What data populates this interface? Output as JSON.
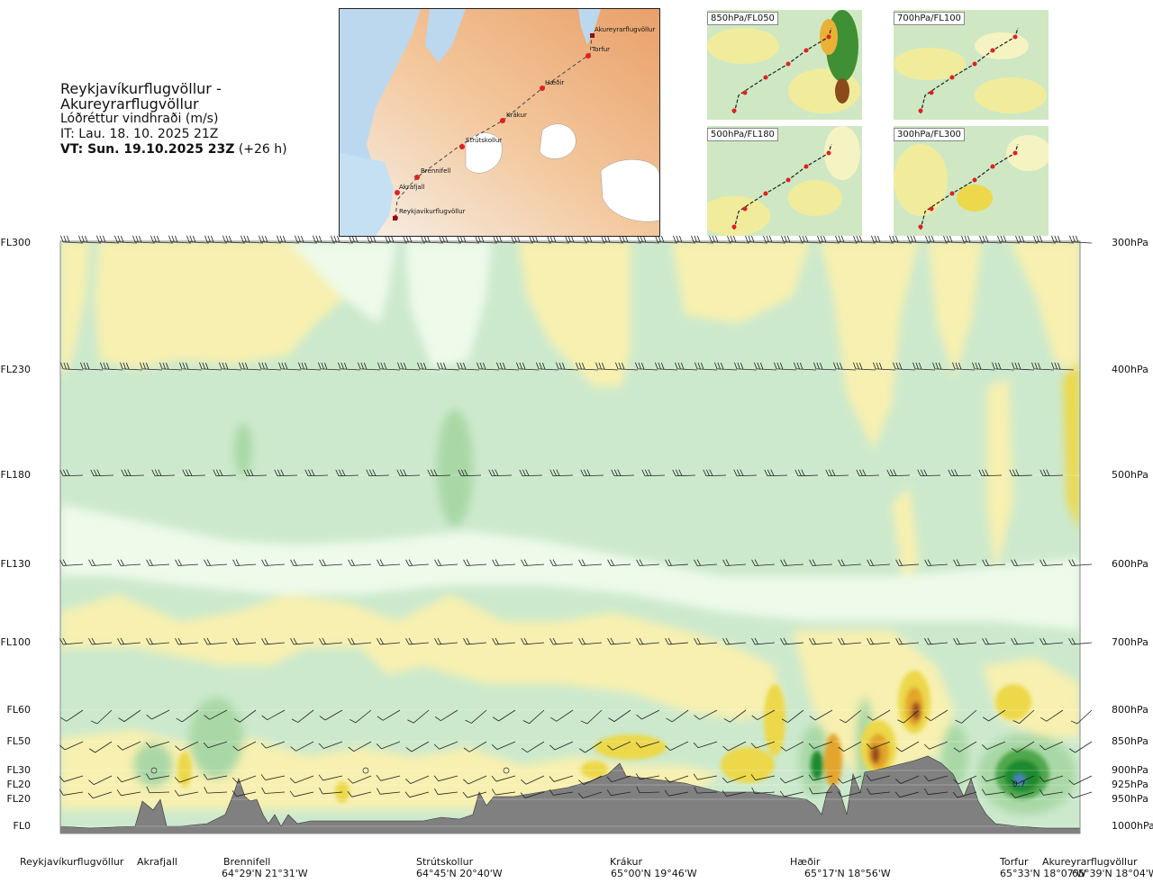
{
  "header": {
    "route": "Reykjavíkurflugvöllur - Akureyrarflugvöllur",
    "variable": "Lóðréttur vindhraði (m/s)",
    "issue_time": "IT: Lau. 18. 10. 2025 21Z",
    "valid_time_bold": "VT: Sun. 19.10.2025 23Z",
    "valid_time_offset": "(+26 h)"
  },
  "map": {
    "waypoints": [
      "Akureyrarflugvöllur",
      "Torfur",
      "Hæðir",
      "Krákur",
      "Strútskollur",
      "Brennifell",
      "Akrafjall",
      "Reykjavíkurflugvöllur"
    ]
  },
  "thumbnails": [
    {
      "label": "850hPa/FL050"
    },
    {
      "label": "700hPa/FL100"
    },
    {
      "label": "500hPa/FL180"
    },
    {
      "label": "300hPa/FL300"
    }
  ],
  "chart_data": {
    "type": "heatmap",
    "title": "Reykjavíkurflugvöllur - Akureyrarflugvöllur",
    "variable": "Lóðréttur vindhraði (m/s)",
    "levels": [
      {
        "fl": "FL300",
        "hpa": "300hPa",
        "p": 300
      },
      {
        "fl": "FL230",
        "hpa": "400hPa",
        "p": 400
      },
      {
        "fl": "FL180",
        "hpa": "500hPa",
        "p": 500
      },
      {
        "fl": "FL130",
        "hpa": "600hPa",
        "p": 600
      },
      {
        "fl": "FL100",
        "hpa": "700hPa",
        "p": 700
      },
      {
        "fl": "FL60",
        "hpa": "800hPa",
        "p": 800
      },
      {
        "fl": "FL50",
        "hpa": "850hPa",
        "p": 850
      },
      {
        "fl": "FL30",
        "hpa": "900hPa",
        "p": 900
      },
      {
        "fl": "FL20",
        "hpa": "925hPa",
        "p": 925
      },
      {
        "fl": "FL20",
        "hpa": "950hPa",
        "p": 950
      },
      {
        "fl": "FL0",
        "hpa": "1000hPa",
        "p": 1000
      }
    ],
    "stations": [
      {
        "name": "Reykjavíkurflugvöllur",
        "coord": "",
        "x": 0.0
      },
      {
        "name": "Akrafjall",
        "coord": "",
        "x": 0.09
      },
      {
        "name": "Brennifell",
        "coord": "64°29'N 21°31'W",
        "x": 0.2
      },
      {
        "name": "Strútskollur",
        "coord": "64°45'N 20°40'W",
        "x": 0.4
      },
      {
        "name": "Krákur",
        "coord": "65°00'N 19°46'W",
        "x": 0.575
      },
      {
        "name": "Hæðir",
        "coord": "65°17'N 18°56'W",
        "x": 0.76
      },
      {
        "name": "Torfur",
        "coord": "65°33'N 18°07'W",
        "x": 0.955
      },
      {
        "name": "Akureyrarflugvöllur",
        "coord": "65°39'N 18°04'W",
        "x": 1.0
      }
    ],
    "annotation": "0.7",
    "colors": {
      "strong_down": "#1f8a2e",
      "mid_down": "#8fca8a",
      "weak_down": "#cce9cd",
      "neutral": "#eefaea",
      "weak_up": "#f7f0b0",
      "mid_up": "#ecd84a",
      "strong_up": "#e3a52a",
      "max_up": "#9b4a1c",
      "terrain": "#808080"
    }
  }
}
